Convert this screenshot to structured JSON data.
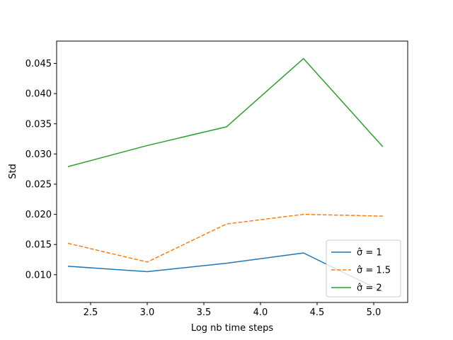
{
  "chart_data": {
    "type": "line",
    "title": "",
    "xlabel": "Log nb time  steps",
    "ylabel": "Std",
    "xlim": [
      2.2,
      5.3
    ],
    "ylim": [
      0.0054,
      0.0487
    ],
    "xticks": [
      2.5,
      3.0,
      3.5,
      4.0,
      4.5,
      5.0
    ],
    "xtick_labels": [
      "2.5",
      "3.0",
      "3.5",
      "4.0",
      "4.5",
      "5.0"
    ],
    "yticks": [
      0.01,
      0.015,
      0.02,
      0.025,
      0.03,
      0.035,
      0.04,
      0.045
    ],
    "ytick_labels": [
      "0.010",
      "0.015",
      "0.020",
      "0.025",
      "0.030",
      "0.035",
      "0.040",
      "0.045"
    ],
    "x": [
      2.3,
      3.0,
      3.7,
      4.38,
      5.08
    ],
    "grid": false,
    "legend_position": "lower-right",
    "series": [
      {
        "name": "σ̂ =  1",
        "values": [
          0.0114,
          0.0105,
          0.0119,
          0.0136,
          0.0072
        ],
        "color": "#1f77b4",
        "style": "solid"
      },
      {
        "name": "σ̂ =  1.5",
        "values": [
          0.0152,
          0.0121,
          0.0184,
          0.02,
          0.0197
        ],
        "color": "#ff7f0e",
        "style": "dashed"
      },
      {
        "name": "σ̂ =  2",
        "values": [
          0.0279,
          0.0314,
          0.0345,
          0.0458,
          0.0312
        ],
        "color": "#2ca02c",
        "style": "solid"
      }
    ]
  }
}
